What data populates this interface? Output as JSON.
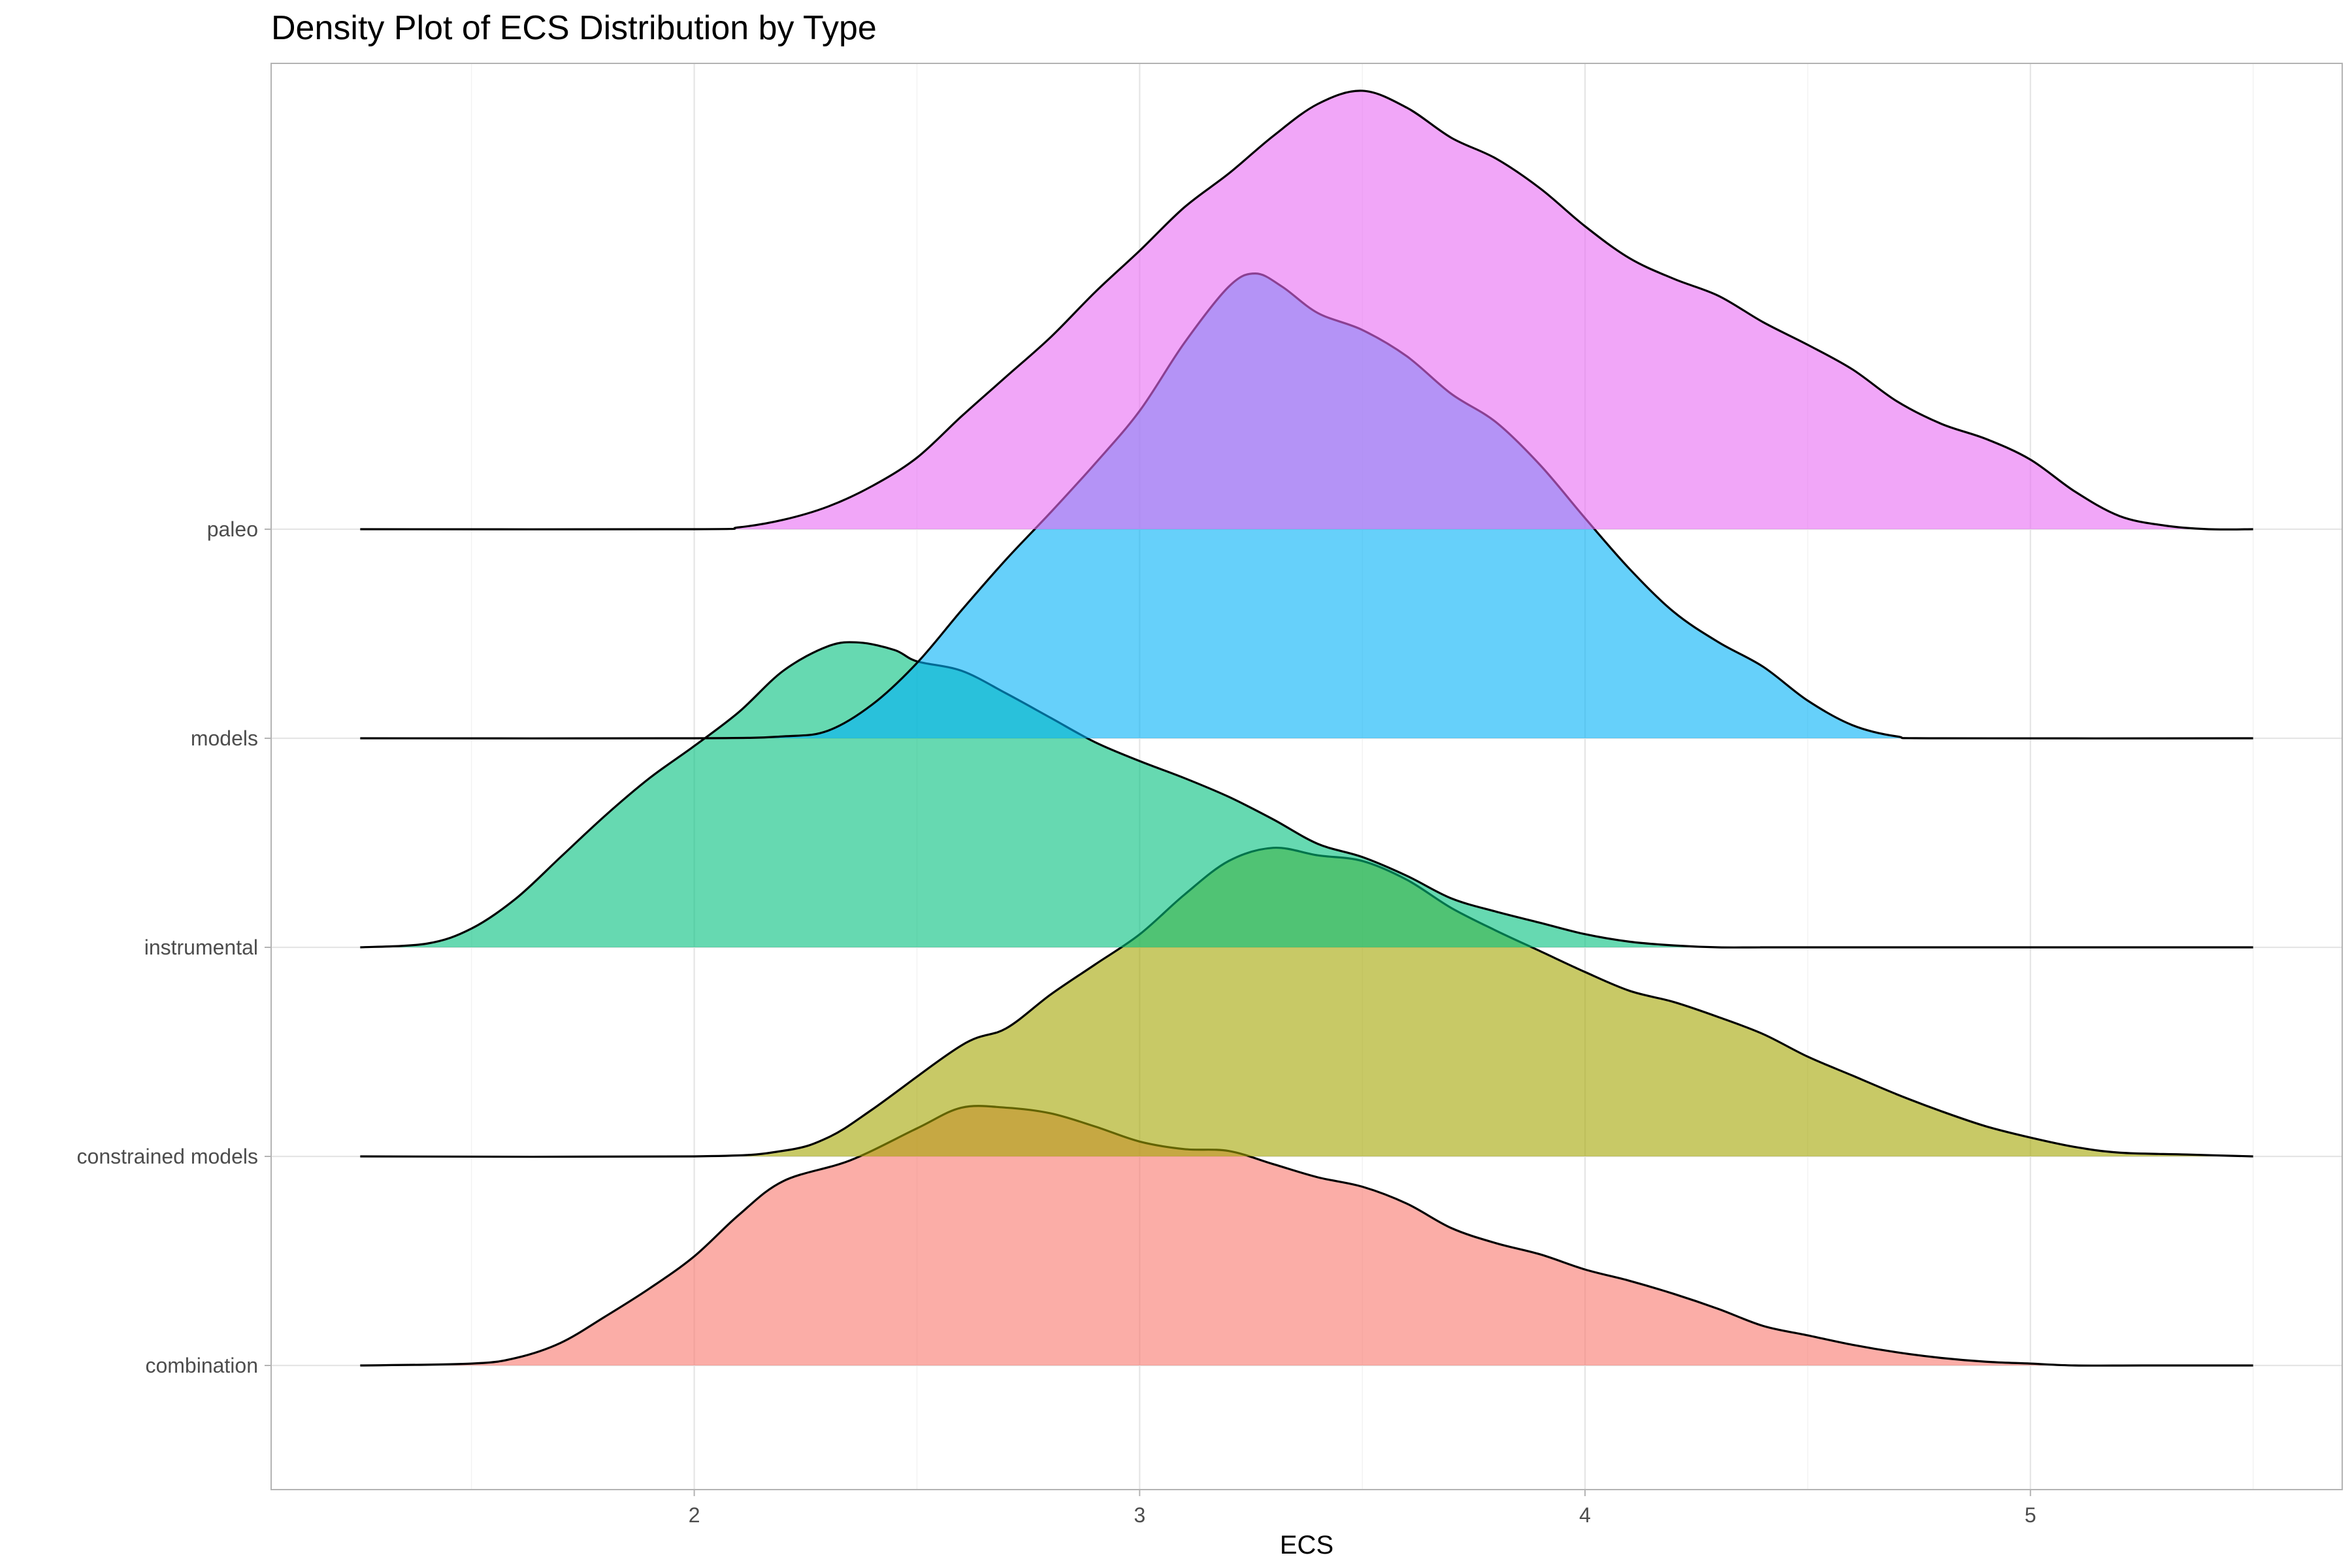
{
  "chart_data": {
    "type": "area",
    "subtype": "ridgeline-density",
    "title": "Density Plot of ECS Distribution by Type",
    "xlabel": "ECS",
    "ylabel": "",
    "xlim": [
      1.05,
      5.7
    ],
    "xticks": [
      2,
      3,
      4,
      5
    ],
    "grid": "on",
    "legend": "none",
    "fill_alpha": 0.6,
    "categories": [
      "combination",
      "constrained models",
      "instrumental",
      "models",
      "paleo"
    ],
    "series": [
      {
        "name": "combination",
        "color": "#F8766D",
        "x": [
          1.25,
          1.5,
          1.6,
          1.7,
          1.8,
          1.9,
          2.0,
          2.1,
          2.2,
          2.35,
          2.5,
          2.6,
          2.7,
          2.8,
          2.9,
          3.0,
          3.1,
          3.2,
          3.3,
          3.4,
          3.5,
          3.6,
          3.7,
          3.8,
          3.9,
          4.0,
          4.1,
          4.2,
          4.3,
          4.4,
          4.5,
          4.6,
          4.7,
          4.8,
          4.9,
          5.0,
          5.1,
          5.25,
          5.5
        ],
        "density": [
          0.0,
          0.01,
          0.04,
          0.12,
          0.26,
          0.41,
          0.58,
          0.8,
          0.98,
          1.09,
          1.26,
          1.37,
          1.37,
          1.34,
          1.27,
          1.19,
          1.15,
          1.14,
          1.07,
          1.0,
          0.95,
          0.86,
          0.73,
          0.65,
          0.59,
          0.51,
          0.45,
          0.38,
          0.3,
          0.21,
          0.16,
          0.11,
          0.07,
          0.04,
          0.02,
          0.01,
          0.0,
          0.0,
          0.0
        ]
      },
      {
        "name": "constrained models",
        "color": "#A3A500",
        "x": [
          1.25,
          2.0,
          2.2,
          2.3,
          2.4,
          2.6,
          2.7,
          2.8,
          2.9,
          3.0,
          3.1,
          3.2,
          3.3,
          3.4,
          3.5,
          3.6,
          3.7,
          3.8,
          3.9,
          4.0,
          4.1,
          4.2,
          4.3,
          4.4,
          4.5,
          4.6,
          4.7,
          4.8,
          4.9,
          5.0,
          5.1,
          5.2,
          5.35,
          5.5
        ],
        "density": [
          0.0,
          0.0,
          0.03,
          0.1,
          0.25,
          0.59,
          0.68,
          0.86,
          1.02,
          1.18,
          1.39,
          1.57,
          1.64,
          1.6,
          1.57,
          1.47,
          1.32,
          1.2,
          1.09,
          0.98,
          0.88,
          0.82,
          0.74,
          0.65,
          0.53,
          0.43,
          0.33,
          0.24,
          0.16,
          0.1,
          0.05,
          0.02,
          0.01,
          0.0
        ]
      },
      {
        "name": "instrumental",
        "color": "#00BF7D",
        "x": [
          1.25,
          1.4,
          1.5,
          1.6,
          1.7,
          1.8,
          1.9,
          2.0,
          2.1,
          2.2,
          2.3,
          2.37,
          2.45,
          2.5,
          2.6,
          2.7,
          2.8,
          2.9,
          3.0,
          3.1,
          3.2,
          3.3,
          3.4,
          3.5,
          3.6,
          3.7,
          3.8,
          3.9,
          4.0,
          4.1,
          4.2,
          4.3,
          4.4,
          4.5,
          5.5
        ],
        "density": [
          0.0,
          0.02,
          0.1,
          0.26,
          0.48,
          0.7,
          0.9,
          1.07,
          1.25,
          1.47,
          1.6,
          1.62,
          1.58,
          1.52,
          1.47,
          1.35,
          1.22,
          1.09,
          0.99,
          0.9,
          0.8,
          0.68,
          0.55,
          0.48,
          0.38,
          0.26,
          0.19,
          0.13,
          0.07,
          0.03,
          0.01,
          0.0,
          0.0,
          0.0,
          0.0
        ]
      },
      {
        "name": "models",
        "color": "#00B0F6",
        "x": [
          1.25,
          2.0,
          2.2,
          2.3,
          2.4,
          2.5,
          2.6,
          2.7,
          2.8,
          2.9,
          3.0,
          3.1,
          3.2,
          3.26,
          3.32,
          3.4,
          3.5,
          3.6,
          3.7,
          3.8,
          3.9,
          4.0,
          4.1,
          4.2,
          4.3,
          4.4,
          4.5,
          4.6,
          4.7,
          4.8,
          5.5
        ],
        "density": [
          0.0,
          0.0,
          0.01,
          0.04,
          0.18,
          0.4,
          0.68,
          0.95,
          1.2,
          1.46,
          1.74,
          2.1,
          2.4,
          2.47,
          2.4,
          2.26,
          2.17,
          2.03,
          1.83,
          1.68,
          1.45,
          1.17,
          0.9,
          0.67,
          0.51,
          0.38,
          0.2,
          0.07,
          0.01,
          0.0,
          0.0
        ]
      },
      {
        "name": "paleo",
        "color": "#E76BF3",
        "x": [
          1.25,
          2.0,
          2.1,
          2.2,
          2.3,
          2.4,
          2.5,
          2.6,
          2.7,
          2.8,
          2.9,
          3.0,
          3.1,
          3.2,
          3.3,
          3.4,
          3.5,
          3.6,
          3.7,
          3.8,
          3.9,
          4.0,
          4.1,
          4.2,
          4.3,
          4.4,
          4.5,
          4.6,
          4.7,
          4.8,
          4.9,
          5.0,
          5.1,
          5.2,
          5.3,
          5.4,
          5.5
        ],
        "density": [
          0.0,
          0.0,
          0.01,
          0.05,
          0.12,
          0.23,
          0.38,
          0.6,
          0.81,
          1.02,
          1.26,
          1.48,
          1.71,
          1.89,
          2.09,
          2.26,
          2.33,
          2.24,
          2.08,
          1.97,
          1.81,
          1.61,
          1.44,
          1.33,
          1.24,
          1.1,
          0.98,
          0.85,
          0.68,
          0.56,
          0.48,
          0.37,
          0.2,
          0.07,
          0.02,
          0.0,
          0.0
        ]
      }
    ]
  }
}
